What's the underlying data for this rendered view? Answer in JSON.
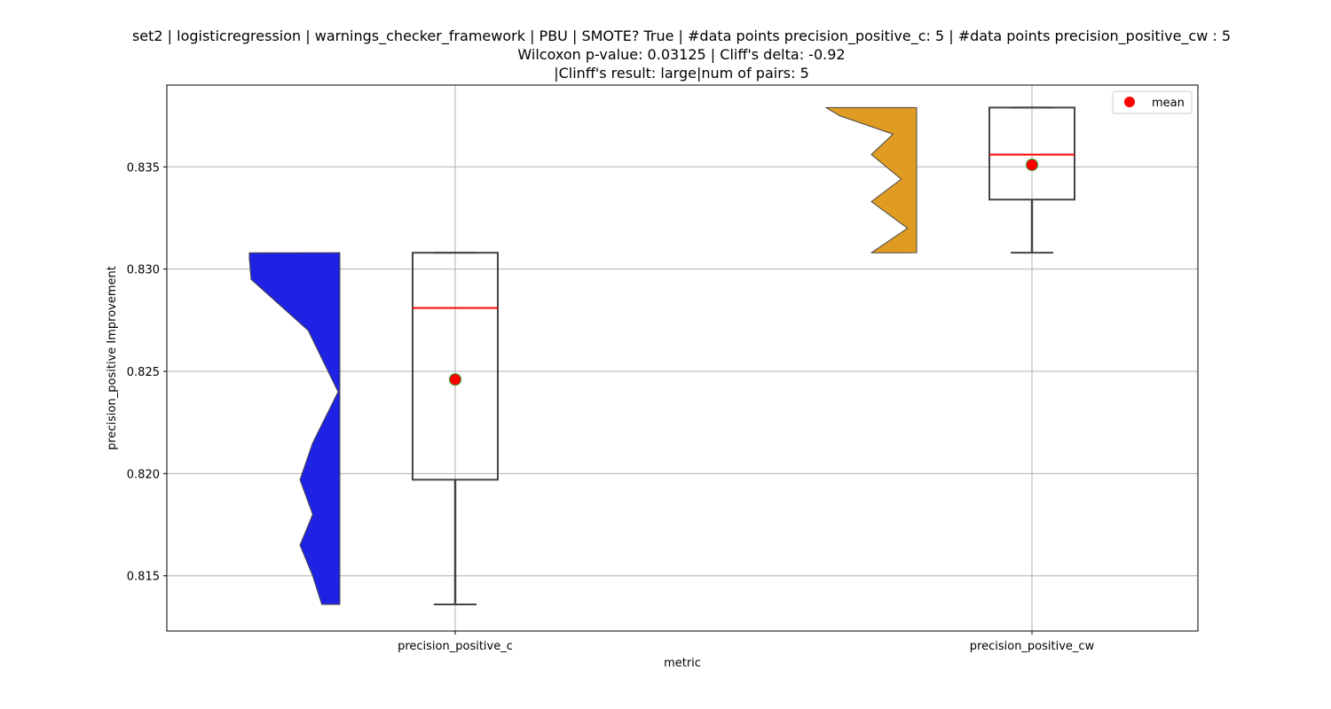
{
  "chart_data": {
    "type": "box+violin",
    "title_lines": [
      "set2 | logisticregression | warnings_checker_framework | PBU | SMOTE? True | #data points precision_positive_c: 5 | #data points precision_positive_cw : 5",
      "Wilcoxon p-value: 0.03125 | Cliff's delta: -0.92",
      "|Clinff's result: large|num of pairs: 5"
    ],
    "xlabel": "metric",
    "ylabel": "precision_positive Improvement",
    "categories": [
      "precision_positive_c",
      "precision_positive_cw"
    ],
    "ylim": [
      0.8123,
      0.839
    ],
    "yticks": [
      0.815,
      0.82,
      0.825,
      0.83,
      0.835
    ],
    "ytick_labels": [
      "0.815",
      "0.820",
      "0.825",
      "0.830",
      "0.835"
    ],
    "grid": true,
    "legend": {
      "label": "mean",
      "placement": "top-right"
    },
    "series": [
      {
        "category": "precision_positive_c",
        "violin_color": "#1f22e3",
        "min": 0.8136,
        "q1": 0.8197,
        "median": 0.8281,
        "q3": 0.8308,
        "max": 0.8308,
        "mean": 0.8246,
        "density": [
          [
            0.8136,
            0.2
          ],
          [
            0.815,
            0.3
          ],
          [
            0.8165,
            0.44
          ],
          [
            0.818,
            0.3
          ],
          [
            0.8197,
            0.44
          ],
          [
            0.8215,
            0.3
          ],
          [
            0.824,
            0.02
          ],
          [
            0.827,
            0.35
          ],
          [
            0.8295,
            0.98
          ],
          [
            0.8305,
            1.0
          ],
          [
            0.8308,
            1.0
          ]
        ]
      },
      {
        "category": "precision_positive_cw",
        "violin_color": "#e09c22",
        "min": 0.8308,
        "q1": 0.8334,
        "median": 0.8356,
        "q3": 0.8379,
        "max": 0.8379,
        "mean": 0.8351,
        "density": [
          [
            0.8308,
            0.5
          ],
          [
            0.832,
            0.1
          ],
          [
            0.8333,
            0.5
          ],
          [
            0.8344,
            0.17
          ],
          [
            0.8356,
            0.5
          ],
          [
            0.8366,
            0.26
          ],
          [
            0.8375,
            0.85
          ],
          [
            0.8379,
            1.0
          ]
        ]
      }
    ],
    "colors": {
      "median": "#ff0000",
      "mean_fill": "#ff0000",
      "mean_edge": "#2ca02c",
      "box_edge": "#444444",
      "grid": "#b0b0b0"
    }
  }
}
